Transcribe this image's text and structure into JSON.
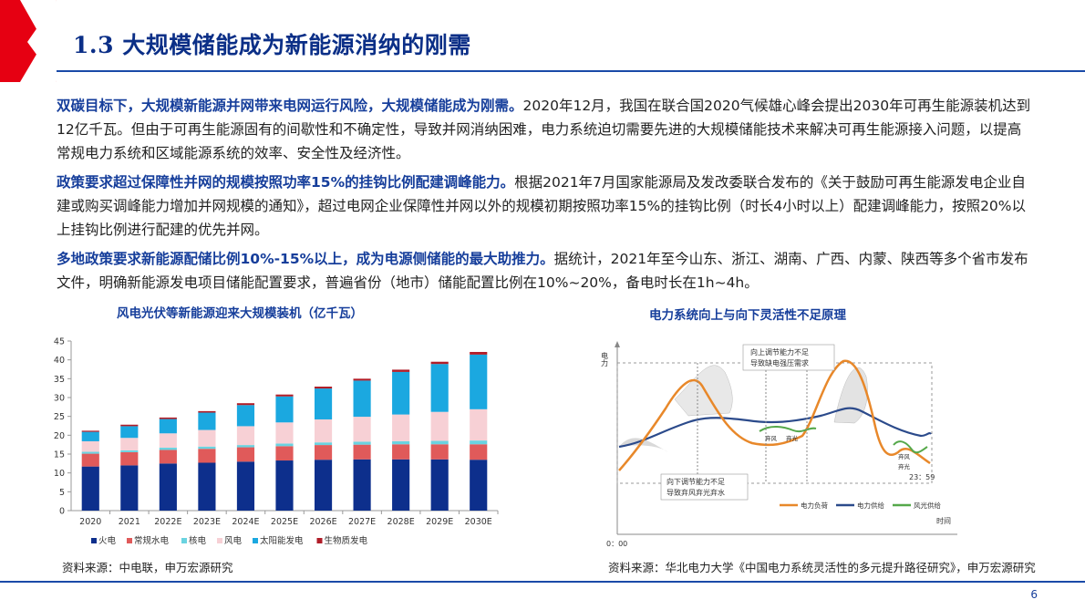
{
  "slide": {
    "title": "1.3 大规模储能成为新能源消纳的刚需",
    "page_number": "6",
    "accent_color": "#e60012",
    "title_color": "#0b2f87"
  },
  "paragraphs": [
    {
      "lead": "双碳目标下，大规模新能源并网带来电网运行风险，大规模储能成为刚需。",
      "text": "2020年12月，我国在联合国2020气候雄心峰会提出2030年可再生能源装机达到12亿千瓦。但由于可再生能源固有的间歇性和不确定性，导致并网消纳困难，电力系统迫切需要先进的大规模储能技术来解决可再生能源接入问题，以提高常规电力系统和区域能源系统的效率、安全性及经济性。"
    },
    {
      "lead": "政策要求超过保障性并网的规模按照功率15%的挂钩比例配建调峰能力。",
      "text": "根据2021年7月国家能源局及发改委联合发布的《关于鼓励可再生能源发电企业自建或购买调峰能力增加并网规模的通知》，超过电网企业保障性并网以外的规模初期按照功率15%的挂钩比例（时长4小时以上）配建调峰能力，按照20%以上挂钩比例进行配建的优先并网。"
    },
    {
      "lead": "多地政策要求新能源配储比例10%-15%以上，成为电源侧储能的最大助推力。",
      "text": "据统计，2021年至今山东、浙江、湖南、广西、内蒙、陕西等多个省市发布文件，明确新能源发电项目储能配置要求，普遍省份（地市）储能配置比例在10%~20%，备电时长在1h~4h。"
    }
  ],
  "left_figure": {
    "title": "风电光伏等新能源迎来大规模装机（亿千瓦）",
    "source": "资料来源：中电联，申万宏源研究"
  },
  "right_figure": {
    "title": "电力系统向上与向下灵活性不足原理",
    "source": "资料来源：华北电力大学《中国电力系统灵活性的多元提升路径研究》，申万宏源研究",
    "y_axis_label": "电力",
    "x_axis_label": "时间",
    "x_start": "0：00",
    "x_end": "23：59",
    "callout_up": [
      "向上调节能力不足",
      "导致缺电强压需求"
    ],
    "callout_down": [
      "向下调节能力不足",
      "导致弃风弃光弃水"
    ],
    "tag_left": [
      "弃风",
      "弃光"
    ],
    "tag_right": [
      "弃风",
      "弃光"
    ],
    "legend": [
      {
        "name": "电力负荷",
        "color": "#e8882a"
      },
      {
        "name": "电力供给",
        "color": "#2b4a8b"
      },
      {
        "name": "风光供给",
        "color": "#55a84a"
      }
    ]
  },
  "chart_data": {
    "type": "bar",
    "stacked": true,
    "categories": [
      "2020",
      "2021",
      "2022E",
      "2023E",
      "2024E",
      "2025E",
      "2026E",
      "2027E",
      "2028E",
      "2029E",
      "2030E"
    ],
    "series": [
      {
        "name": "火电",
        "color": "#0d2f8c",
        "values": [
          11.7,
          12.0,
          12.5,
          12.7,
          13.0,
          13.3,
          13.5,
          13.6,
          13.6,
          13.6,
          13.5
        ]
      },
      {
        "name": "常规水电",
        "color": "#e05a5a",
        "values": [
          3.4,
          3.5,
          3.6,
          3.7,
          3.8,
          3.8,
          3.9,
          3.9,
          4.0,
          4.0,
          4.1
        ]
      },
      {
        "name": "核电",
        "color": "#6ad3e0",
        "values": [
          0.5,
          0.5,
          0.6,
          0.6,
          0.6,
          0.7,
          0.7,
          0.8,
          0.8,
          0.9,
          1.0
        ]
      },
      {
        "name": "风电",
        "color": "#f7d0d5",
        "values": [
          2.8,
          3.3,
          3.8,
          4.4,
          5.0,
          5.6,
          6.1,
          6.6,
          7.1,
          7.7,
          8.3
        ]
      },
      {
        "name": "太阳能发电",
        "color": "#1ba8e0",
        "values": [
          2.5,
          3.1,
          3.8,
          4.6,
          5.6,
          6.9,
          8.2,
          9.6,
          11.3,
          12.7,
          14.5
        ]
      },
      {
        "name": "生物质发电",
        "color": "#b01d28",
        "values": [
          0.3,
          0.4,
          0.4,
          0.4,
          0.5,
          0.5,
          0.5,
          0.5,
          0.6,
          0.6,
          0.7
        ]
      }
    ],
    "ylim": [
      0,
      45
    ],
    "yticks": [
      0,
      5,
      10,
      15,
      20,
      25,
      30,
      35,
      40,
      45
    ],
    "xlabel": "",
    "ylabel": "",
    "legend_position": "bottom",
    "grid": false
  }
}
